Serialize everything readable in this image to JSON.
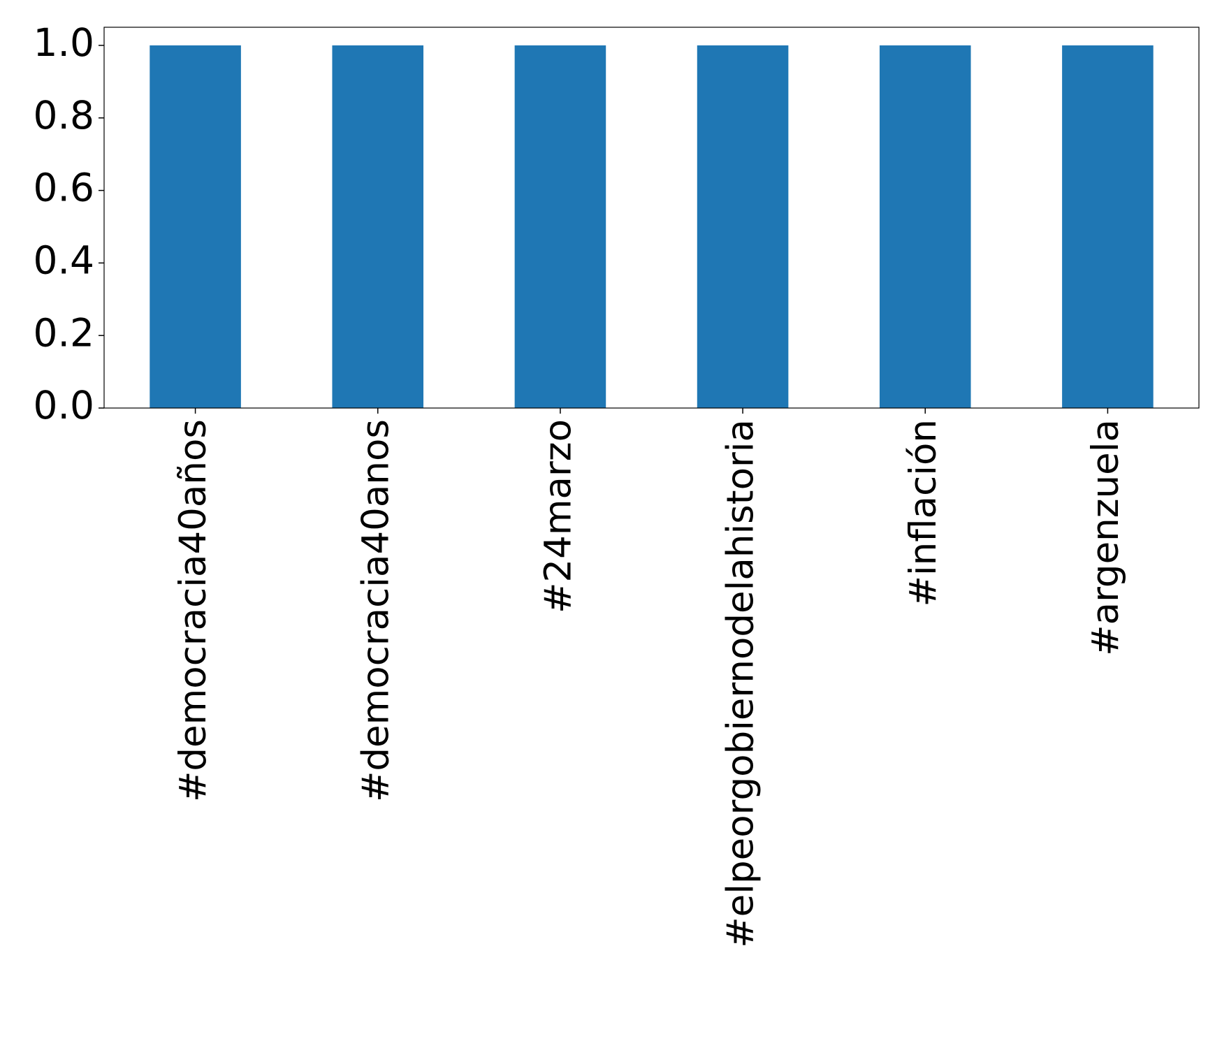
{
  "chart_data": {
    "type": "bar",
    "categories": [
      "#democracia40años",
      "#democracia40anos",
      "#24marzo",
      "#elpeorgobiernodelahistoria",
      "#inflación",
      "#argenzuela"
    ],
    "values": [
      1,
      1,
      1,
      1,
      1,
      1
    ],
    "color": "#1f77b4",
    "ylim": [
      0,
      1.05
    ],
    "yticks": [
      {
        "value": 0,
        "label": "0.0"
      },
      {
        "value": 0.2,
        "label": "0.2"
      },
      {
        "value": 0.4,
        "label": "0.4"
      },
      {
        "value": 0.6,
        "label": "0.6"
      },
      {
        "value": 0.8,
        "label": "0.8"
      },
      {
        "value": 1,
        "label": "1.0"
      }
    ],
    "grid": false
  }
}
